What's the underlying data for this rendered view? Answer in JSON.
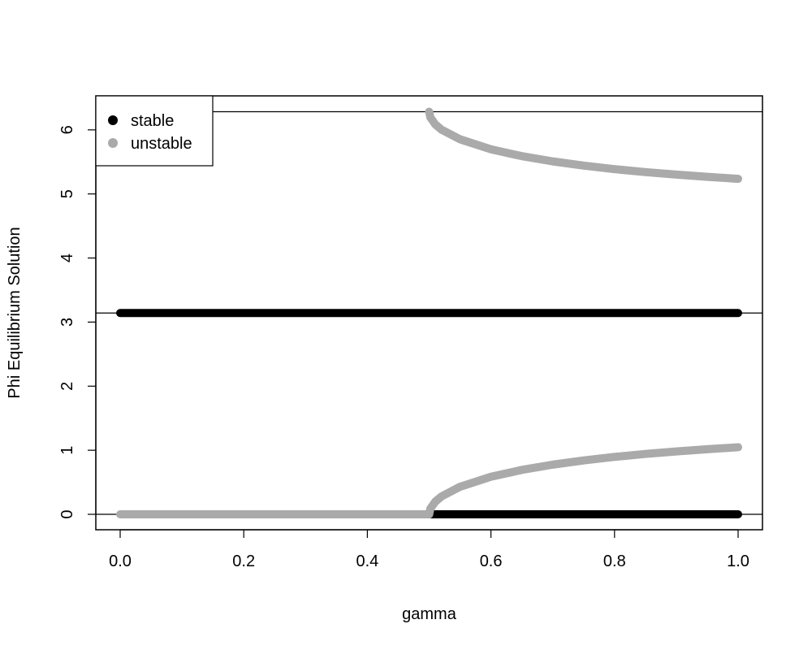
{
  "chart_data": {
    "type": "scatter",
    "title": "",
    "xlabel": "gamma",
    "ylabel": "Phi Equilibrium Solution",
    "xlim": [
      0.0,
      1.0
    ],
    "ylim": [
      0,
      6.2832
    ],
    "x_ticks": [
      "0.0",
      "0.2",
      "0.4",
      "0.6",
      "0.8",
      "1.0"
    ],
    "y_ticks": [
      "0",
      "1",
      "2",
      "3",
      "4",
      "5",
      "6"
    ],
    "x_tick_values": [
      0.0,
      0.2,
      0.4,
      0.6,
      0.8,
      1.0
    ],
    "y_tick_values": [
      0,
      1,
      2,
      3,
      4,
      5,
      6
    ],
    "reference_lines": [
      0,
      3.1416,
      6.2832
    ],
    "grid": false,
    "legend": {
      "position": "top-left",
      "entries": [
        {
          "label": "stable",
          "color": "#000000"
        },
        {
          "label": "unstable",
          "color": "#aaaaaa"
        }
      ]
    },
    "series": [
      {
        "name": "stable",
        "color": "#000000",
        "segments": [
          {
            "x": [
              0.0,
              0.1,
              0.2,
              0.3,
              0.4,
              0.5,
              0.6,
              0.7,
              0.8,
              0.9,
              1.0
            ],
            "y": [
              3.1416,
              3.1416,
              3.1416,
              3.1416,
              3.1416,
              3.1416,
              3.1416,
              3.1416,
              3.1416,
              3.1416,
              3.1416
            ]
          },
          {
            "x": [
              0.5,
              0.6,
              0.7,
              0.8,
              0.9,
              1.0
            ],
            "y": [
              0,
              0,
              0,
              0,
              0,
              0
            ]
          }
        ]
      },
      {
        "name": "unstable",
        "color": "#aaaaaa",
        "segments": [
          {
            "x": [
              0.0,
              0.1,
              0.2,
              0.3,
              0.4,
              0.5
            ],
            "y": [
              0,
              0,
              0,
              0,
              0,
              0
            ]
          },
          {
            "x": [
              0.5,
              0.502,
              0.51,
              0.52,
              0.55,
              0.6,
              0.65,
              0.7,
              0.75,
              0.8,
              0.85,
              0.9,
              0.95,
              1.0
            ],
            "y": [
              0.0,
              0.089,
              0.198,
              0.279,
              0.43,
              0.586,
              0.693,
              0.775,
              0.841,
              0.896,
              0.942,
              0.981,
              1.016,
              1.047
            ]
          },
          {
            "x": [
              0.5,
              0.502,
              0.51,
              0.52,
              0.55,
              0.6,
              0.65,
              0.7,
              0.75,
              0.8,
              0.85,
              0.9,
              0.95,
              1.0
            ],
            "y": [
              6.2832,
              6.194,
              6.085,
              6.004,
              5.853,
              5.697,
              5.59,
              5.508,
              5.442,
              5.387,
              5.341,
              5.302,
              5.267,
              5.236
            ]
          }
        ]
      }
    ]
  }
}
